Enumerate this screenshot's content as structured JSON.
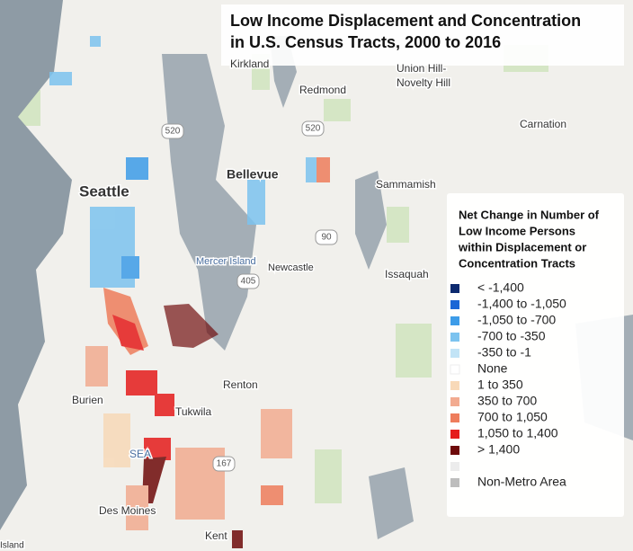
{
  "header": {
    "title_lines": [
      "Low Income Displacement and Concentration",
      "in U.S. Census Tracts, 2000 to 2016"
    ]
  },
  "legend": {
    "title_lines": [
      "Net Change in Number of",
      "Low Income Persons",
      "within Displacement or",
      "Concentration Tracts"
    ],
    "items": [
      {
        "label": "< -1,400",
        "color": "#0d2a6e"
      },
      {
        "label": "-1,400 to -1,050",
        "color": "#1a66d6"
      },
      {
        "label": "-1,050 to -700",
        "color": "#3d9ce8"
      },
      {
        "label": "-700 to -350",
        "color": "#7cc3ef"
      },
      {
        "label": "-350 to -1",
        "color": "#c2e4f6"
      },
      {
        "label": "None",
        "color": "#ffffff"
      },
      {
        "label": "1 to 350",
        "color": "#f8d9b8"
      },
      {
        "label": "350 to 700",
        "color": "#f2ab90"
      },
      {
        "label": "700 to 1,050",
        "color": "#ee7d5c"
      },
      {
        "label": "1,050 to 1,400",
        "color": "#e51c1c"
      },
      {
        "label": "> 1,400",
        "color": "#6e0a0a"
      },
      {
        "color": "#ececec"
      },
      {
        "label": "Non-Metro Area",
        "color": "#bdbdbd"
      }
    ]
  },
  "places": [
    "Kirkland",
    "Redmond",
    "Union Hill-",
    "Novelty Hill",
    "Carnation",
    "Bellevue",
    "Sammamish",
    "Seattle",
    "Mercer Island",
    "Newcastle",
    "Issaquah",
    "Renton",
    "Burien",
    "Tukwila",
    "SEA",
    "Des Moines",
    "Kent",
    "Island"
  ],
  "shields": [
    "520",
    "520",
    "90",
    "405",
    "167"
  ]
}
